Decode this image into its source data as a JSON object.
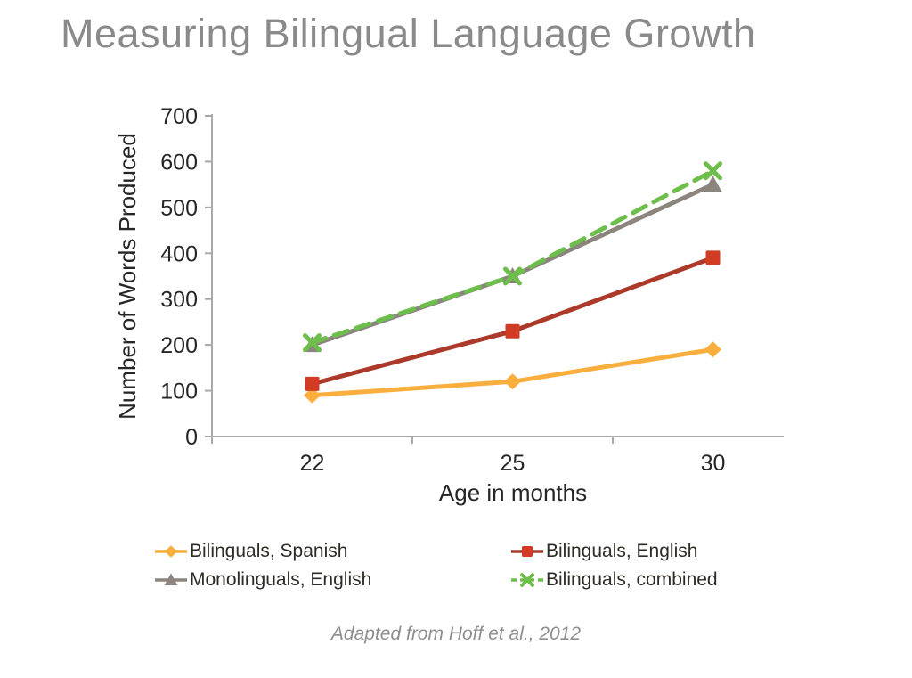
{
  "slide": {
    "title": "Measuring Bilingual Language Growth",
    "caption": "Adapted from Hoff et al., 2012"
  },
  "colors": {
    "title": "#8a8a8a",
    "caption": "#8e8e90",
    "axis_line": "#a9a9a9",
    "axis_text": "#262626",
    "legend_text": "#2e2a26",
    "spanish_yellow": "#FAAE3D",
    "english_red": "#AC3A2B",
    "monolingual_gray": "#8B857E",
    "combined_green": "#6DBE4B"
  },
  "chart_data": {
    "type": "line",
    "title": "Measuring Bilingual Language Growth",
    "xlabel": "Age in months",
    "ylabel": "Number of Words Produced",
    "categories": [
      "22",
      "25",
      "30"
    ],
    "x_axis_type": "categorical",
    "ylim": [
      0,
      700
    ],
    "ytick_step": 100,
    "grid": false,
    "series": [
      {
        "name": "Bilinguals, Spanish",
        "values": [
          90,
          120,
          190
        ],
        "color": "#FAAE3D",
        "marker": "diamond",
        "dash": false
      },
      {
        "name": "Bilinguals, English",
        "values": [
          115,
          230,
          390
        ],
        "color": "#AC3A2B",
        "marker": "square",
        "dash": false,
        "marker_color": "#D23B24"
      },
      {
        "name": "Monolinguals, English",
        "values": [
          200,
          350,
          550
        ],
        "color": "#8B857E",
        "marker": "triangle",
        "dash": false
      },
      {
        "name": "Bilinguals, combined",
        "values": [
          205,
          350,
          580
        ],
        "color": "#6DBE4B",
        "marker": "x",
        "dash": true
      }
    ],
    "legend": {
      "position": "bottom",
      "columns": [
        [
          "Bilinguals, Spanish",
          "Monolinguals, English"
        ],
        [
          "Bilinguals, English",
          "Bilinguals, combined"
        ]
      ]
    },
    "annotation": "Adapted from Hoff et al., 2012"
  }
}
